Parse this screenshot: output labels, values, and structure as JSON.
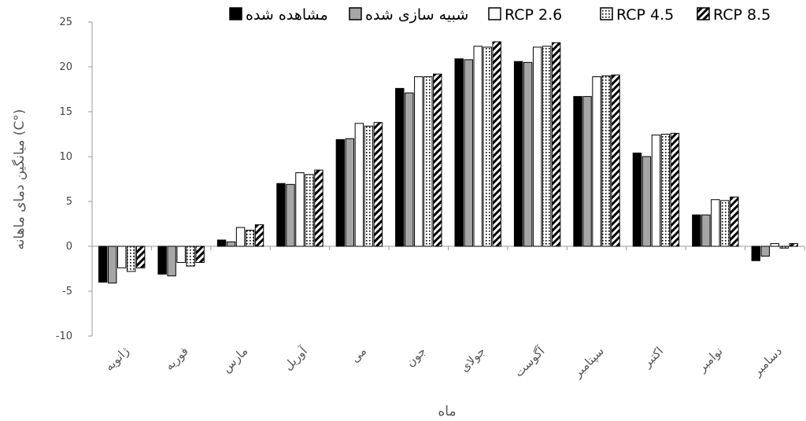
{
  "chart_data": {
    "type": "bar",
    "title": "",
    "xlabel": "ماه",
    "ylabel": "میانگین دمای ماهانه (C°)",
    "ylim": [
      -10,
      25
    ],
    "yticks": [
      -10,
      -5,
      0,
      5,
      10,
      15,
      20,
      25
    ],
    "grid": false,
    "legend_position": "top",
    "categories": [
      "ژانویه",
      "فوریه",
      "مارس",
      "آوریل",
      "می",
      "جون",
      "جولای",
      "آگوست",
      "سپتامبر",
      "اکتبر",
      "نوامبر",
      "دسامبر"
    ],
    "series": [
      {
        "name": "مشاهده شده",
        "style": "solid-black",
        "color": "#000000",
        "values": [
          -4.0,
          -3.1,
          0.7,
          7.0,
          11.9,
          17.6,
          20.9,
          20.6,
          16.7,
          10.4,
          3.5,
          -1.6
        ]
      },
      {
        "name": "شبیه سازی شده",
        "style": "solid-gray",
        "color": "#a6a6a6",
        "values": [
          -4.1,
          -3.3,
          0.5,
          6.9,
          12.0,
          17.1,
          20.8,
          20.5,
          16.7,
          10.0,
          3.5,
          -1.1
        ]
      },
      {
        "name": "RCP 2.6",
        "style": "white",
        "color": "#ffffff",
        "values": [
          -2.4,
          -1.8,
          2.1,
          8.2,
          13.7,
          18.9,
          22.3,
          22.2,
          18.9,
          12.4,
          5.2,
          0.3
        ]
      },
      {
        "name": "RCP 4.5",
        "style": "dotted",
        "color": "#000000",
        "values": [
          -2.8,
          -2.2,
          1.8,
          8.0,
          13.4,
          18.9,
          22.2,
          22.3,
          19.0,
          12.5,
          5.1,
          -0.2
        ]
      },
      {
        "name": "RCP 8.5",
        "style": "diagonal-stripes",
        "color": "#000000",
        "values": [
          -2.4,
          -1.8,
          2.4,
          8.5,
          13.8,
          19.2,
          22.8,
          22.7,
          19.1,
          12.6,
          5.5,
          0.3
        ]
      }
    ]
  }
}
